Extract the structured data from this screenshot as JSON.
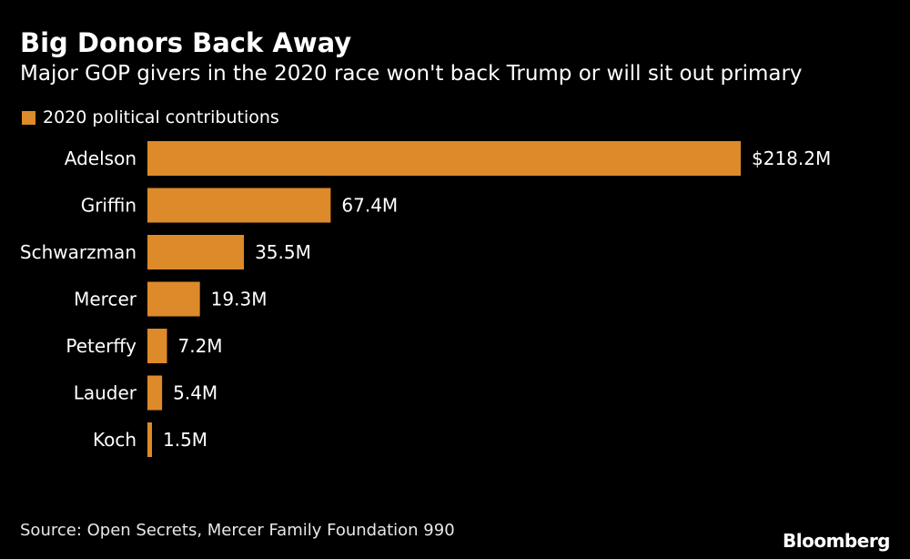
{
  "chart_data": {
    "type": "bar",
    "orientation": "horizontal",
    "title": "Big Donors Back Away",
    "subtitle": "Major GOP givers in the 2020 race won't back Trump or will sit out primary",
    "categories": [
      "Adelson",
      "Griffin",
      "Schwarzman",
      "Mercer",
      "Peterffy",
      "Lauder",
      "Koch"
    ],
    "series": [
      {
        "name": "2020 political contributions",
        "values": [
          218.2,
          67.4,
          35.5,
          19.3,
          7.2,
          5.4,
          1.5
        ],
        "color": "#dc8a2a"
      }
    ],
    "data_labels": [
      "$218.2M",
      "67.4M",
      "35.5M",
      "19.3M",
      "7.2M",
      "5.4M",
      "1.5M"
    ],
    "legend_position": "top-left",
    "grid": false,
    "source": "Source: Open Secrets, Mercer Family Foundation 990",
    "brand": "Bloomberg"
  }
}
